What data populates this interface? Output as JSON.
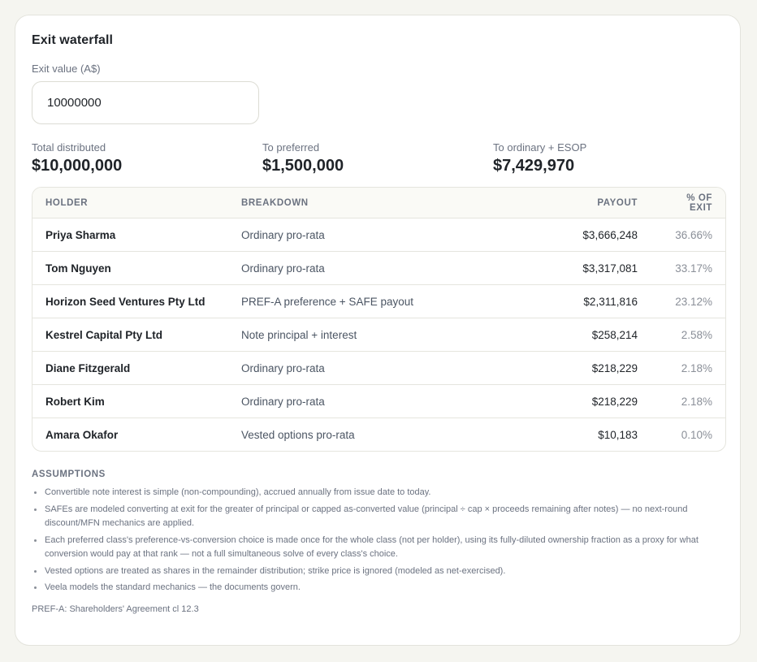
{
  "panel": {
    "title": "Exit waterfall"
  },
  "exit_value": {
    "label": "Exit value (A$)",
    "value": "10000000"
  },
  "stats": [
    {
      "label": "Total distributed",
      "value": "$10,000,000"
    },
    {
      "label": "To preferred",
      "value": "$1,500,000"
    },
    {
      "label": "To ordinary + ESOP",
      "value": "$7,429,970"
    }
  ],
  "table": {
    "headers": {
      "holder": "HOLDER",
      "breakdown": "BREAKDOWN",
      "payout": "PAYOUT",
      "pct": "% OF EXIT"
    },
    "rows": [
      {
        "holder": "Priya Sharma",
        "breakdown": "Ordinary pro-rata",
        "payout": "$3,666,248",
        "pct": "36.66%"
      },
      {
        "holder": "Tom Nguyen",
        "breakdown": "Ordinary pro-rata",
        "payout": "$3,317,081",
        "pct": "33.17%"
      },
      {
        "holder": "Horizon Seed Ventures Pty Ltd",
        "breakdown": "PREF-A preference + SAFE payout",
        "payout": "$2,311,816",
        "pct": "23.12%"
      },
      {
        "holder": "Kestrel Capital Pty Ltd",
        "breakdown": "Note principal + interest",
        "payout": "$258,214",
        "pct": "2.58%"
      },
      {
        "holder": "Diane Fitzgerald",
        "breakdown": "Ordinary pro-rata",
        "payout": "$218,229",
        "pct": "2.18%"
      },
      {
        "holder": "Robert Kim",
        "breakdown": "Ordinary pro-rata",
        "payout": "$218,229",
        "pct": "2.18%"
      },
      {
        "holder": "Amara Okafor",
        "breakdown": "Vested options pro-rata",
        "payout": "$10,183",
        "pct": "0.10%"
      }
    ]
  },
  "assumptions": {
    "title": "ASSUMPTIONS",
    "items": [
      "Convertible note interest is simple (non-compounding), accrued annually from issue date to today.",
      "SAFEs are modeled converting at exit for the greater of principal or capped as-converted value (principal ÷ cap × proceeds remaining after notes) — no next-round discount/MFN mechanics are applied.",
      "Each preferred class's preference-vs-conversion choice is made once for the whole class (not per holder), using its fully-diluted ownership fraction as a proxy for what conversion would pay at that rank — not a full simultaneous solve of every class's choice.",
      "Vested options are treated as shares in the remainder distribution; strike price is ignored (modeled as net-exercised).",
      "Veela models the standard mechanics — the documents govern."
    ],
    "footnote": "PREF-A: Shareholders' Agreement cl 12.3"
  }
}
